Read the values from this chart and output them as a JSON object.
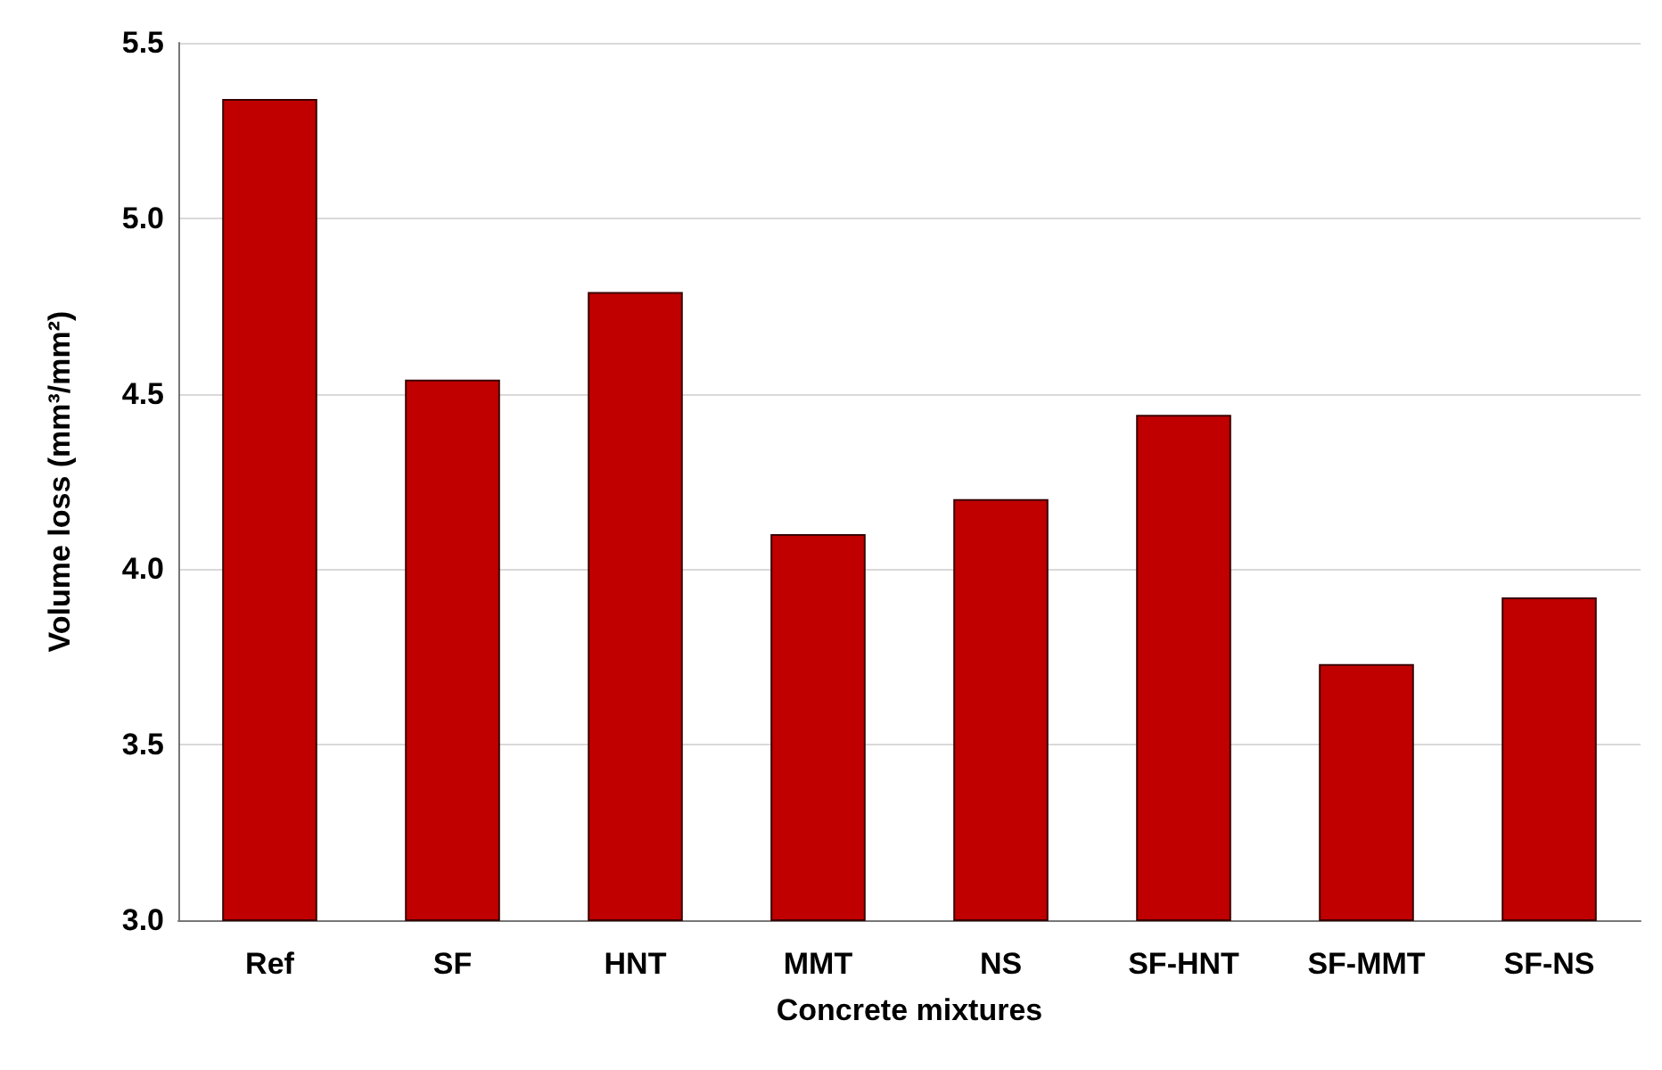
{
  "chart_data": {
    "type": "bar",
    "xlabel": "Concrete mixtures",
    "ylabel": "Volume loss (mm³/mm²)",
    "categories": [
      "Ref",
      "SF",
      "HNT",
      "MMT",
      "NS",
      "SF-HNT",
      "SF-MMT",
      "SF-NS"
    ],
    "values": [
      5.34,
      4.54,
      4.79,
      4.1,
      4.2,
      4.44,
      3.73,
      3.92
    ],
    "color": "#c00000",
    "ylim": [
      3.0,
      5.5
    ],
    "yticks": [
      {
        "value": 3.0,
        "label": "3.0"
      },
      {
        "value": 3.5,
        "label": "3.5"
      },
      {
        "value": 4.0,
        "label": "4.0"
      },
      {
        "value": 4.5,
        "label": "4.5"
      },
      {
        "value": 5.0,
        "label": "5.0"
      },
      {
        "value": 5.5,
        "label": "5.5"
      }
    ],
    "grid": "y"
  }
}
